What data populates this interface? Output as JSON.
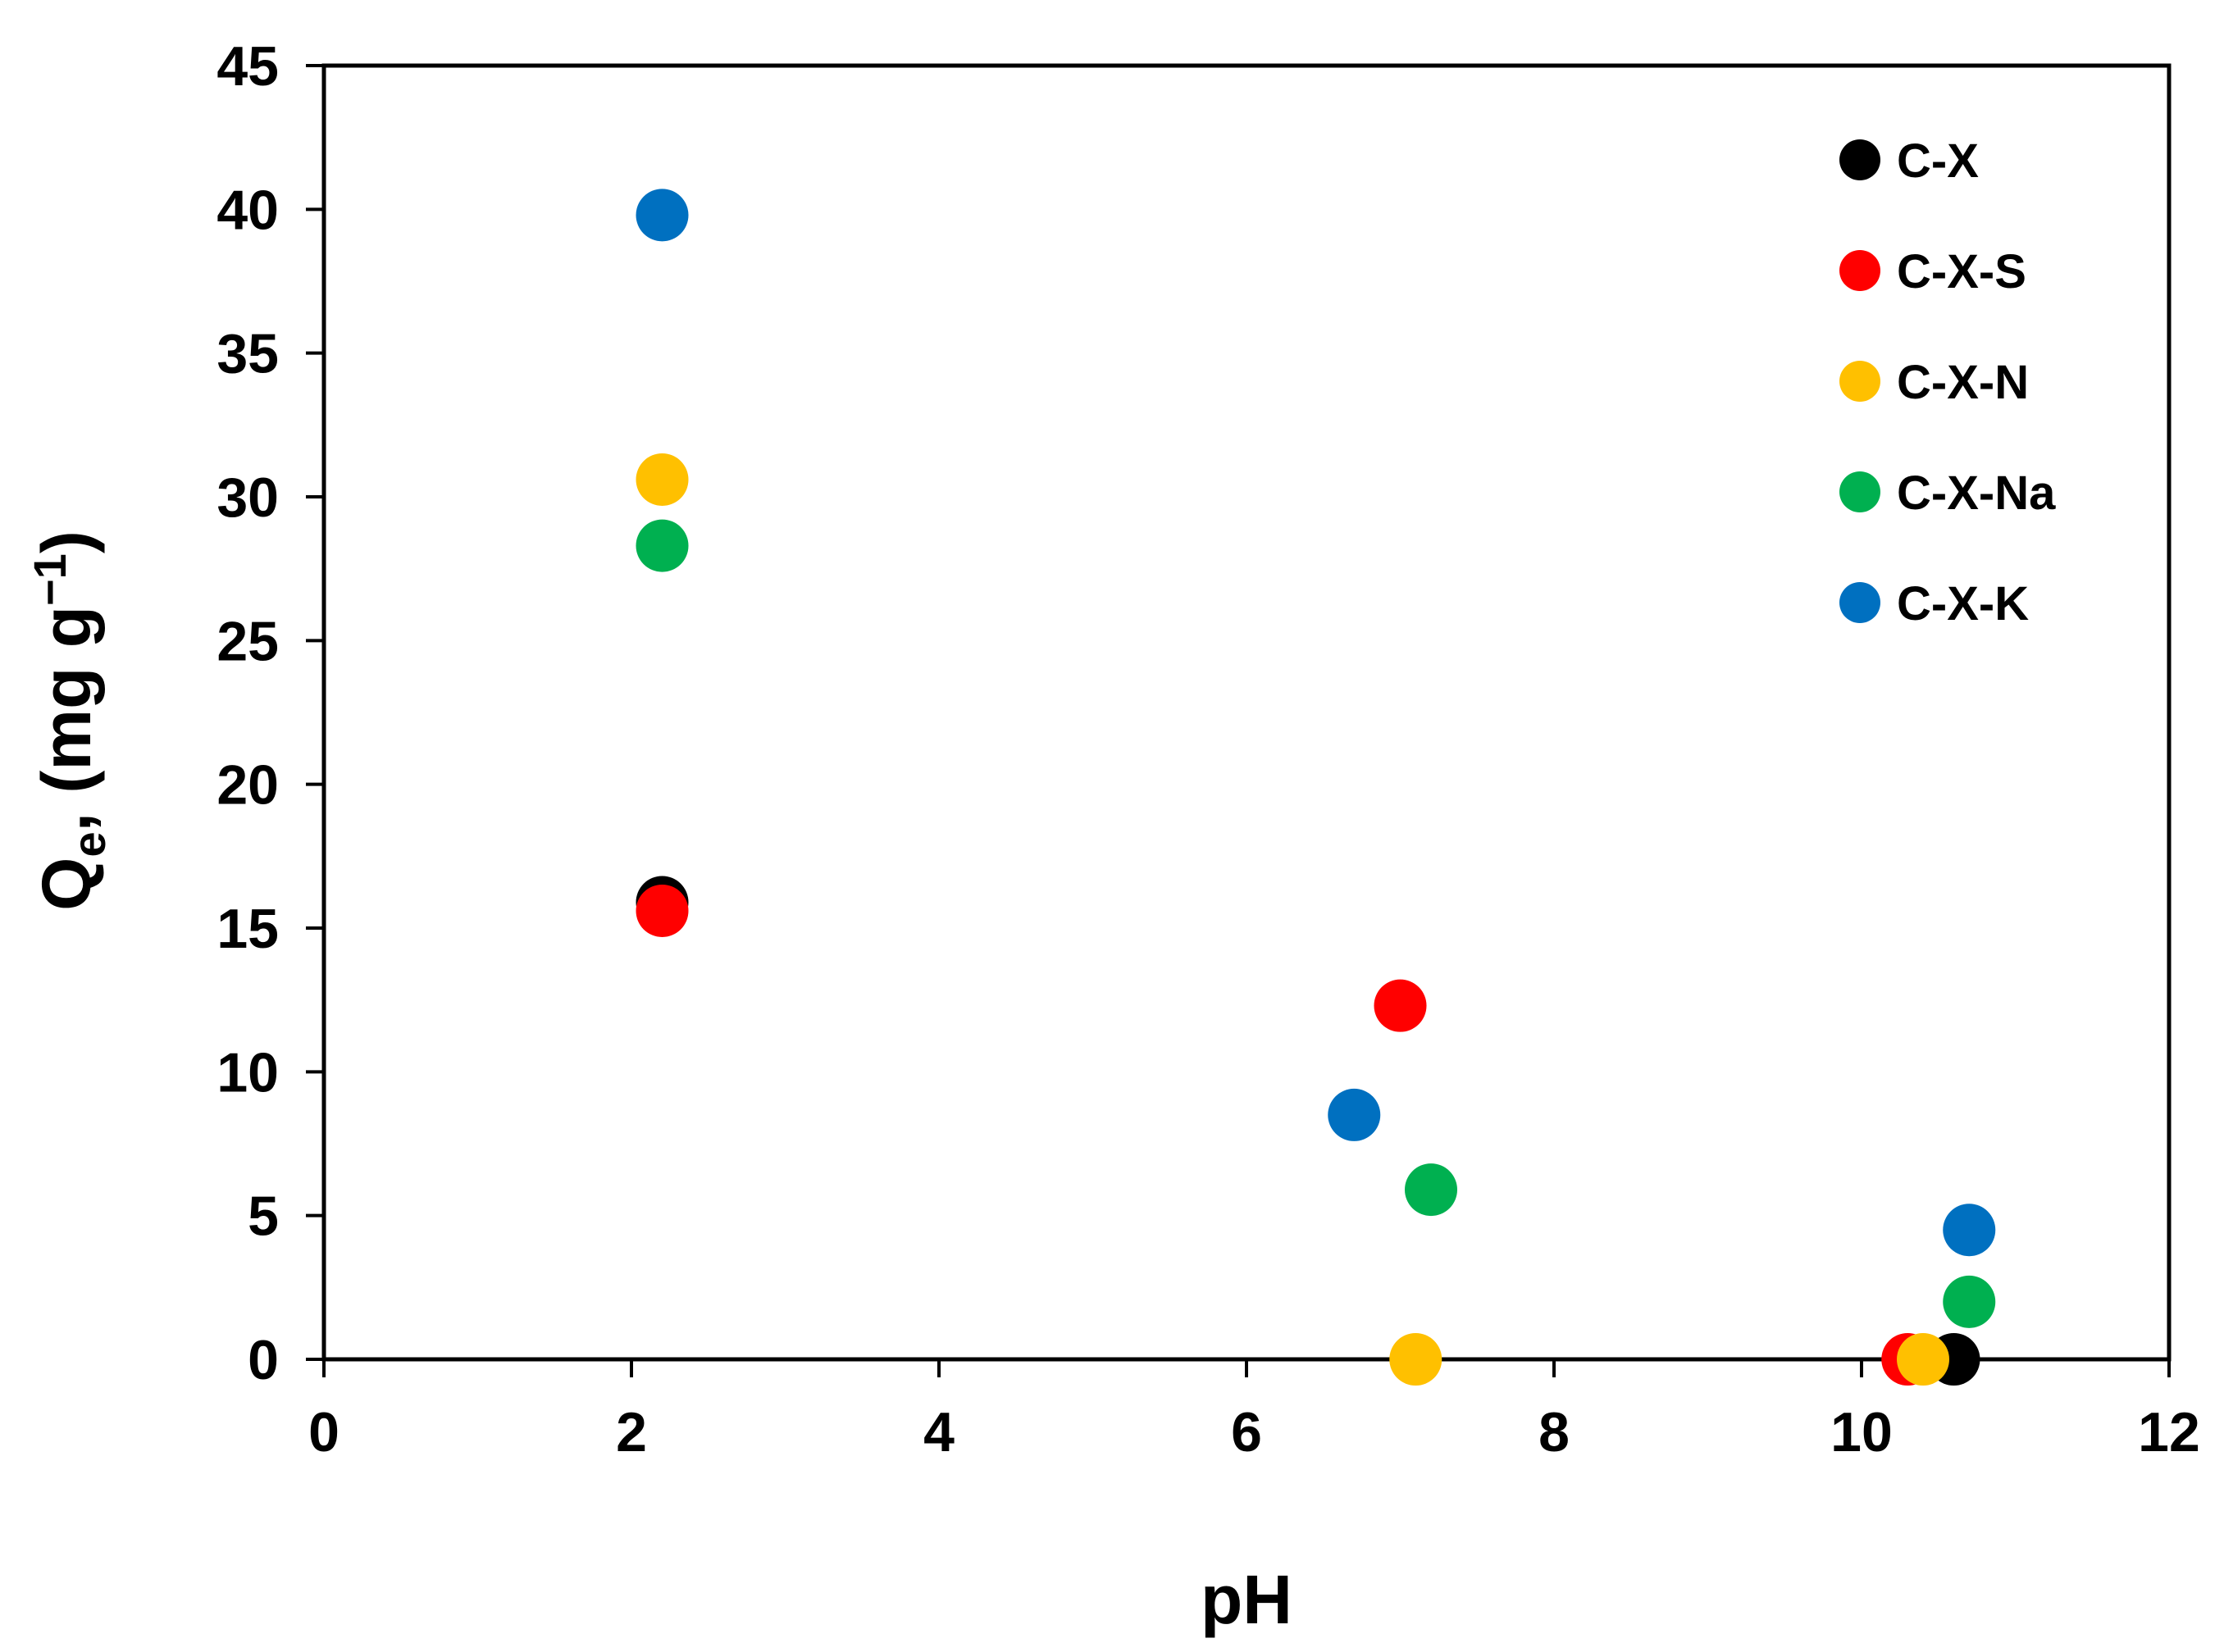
{
  "chart_data": {
    "type": "scatter",
    "title": "",
    "xlabel": "pH",
    "ylabel": {
      "main": "Q",
      "subscript": "e",
      "after_subscript": ", (mg g",
      "superscript": "−1",
      "close": ")"
    },
    "xlim": [
      0,
      12
    ],
    "ylim": [
      0,
      45
    ],
    "xticks": [
      "0",
      "2",
      "4",
      "6",
      "8",
      "10",
      "12"
    ],
    "yticks": [
      "0",
      "5",
      "10",
      "15",
      "20",
      "25",
      "30",
      "35",
      "40",
      "45"
    ],
    "grid": false,
    "legend_position": "top-right",
    "series": [
      {
        "name": "C-X",
        "color": "#000000",
        "points": [
          {
            "x": 2.2,
            "y": 15.9
          },
          {
            "x": 10.6,
            "y": 0
          }
        ]
      },
      {
        "name": "C-X-S",
        "color": "#ff0000",
        "points": [
          {
            "x": 2.2,
            "y": 15.6
          },
          {
            "x": 7.0,
            "y": 12.3
          },
          {
            "x": 10.3,
            "y": 0
          }
        ]
      },
      {
        "name": "C-X-N",
        "color": "#ffc000",
        "points": [
          {
            "x": 2.2,
            "y": 30.6
          },
          {
            "x": 7.1,
            "y": 0
          },
          {
            "x": 10.4,
            "y": 0
          }
        ]
      },
      {
        "name": "C-X-Na",
        "color": "#00b050",
        "points": [
          {
            "x": 2.2,
            "y": 28.3
          },
          {
            "x": 7.2,
            "y": 5.9
          },
          {
            "x": 10.7,
            "y": 2.0
          }
        ]
      },
      {
        "name": "C-X-K",
        "color": "#0070c0",
        "points": [
          {
            "x": 2.2,
            "y": 39.8
          },
          {
            "x": 6.7,
            "y": 8.5
          },
          {
            "x": 10.7,
            "y": 4.5
          }
        ]
      }
    ]
  }
}
